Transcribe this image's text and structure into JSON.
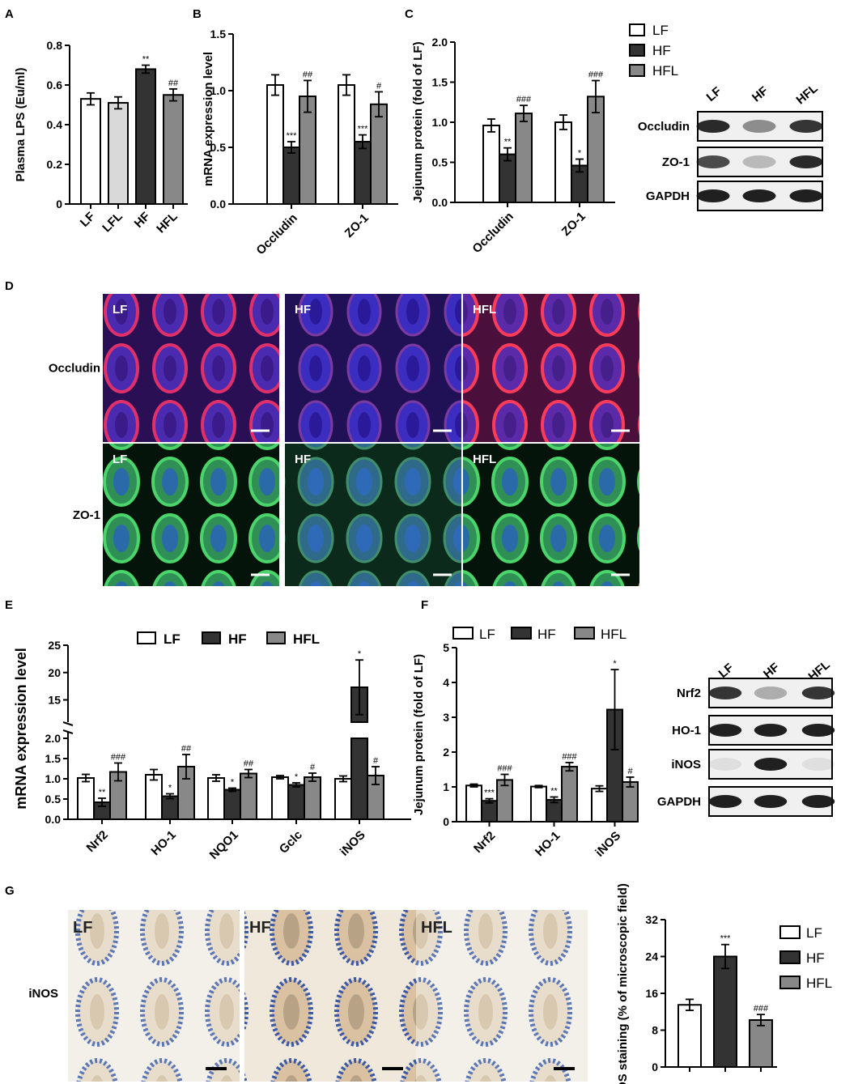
{
  "colors": {
    "LF": "#ffffff",
    "LFL": "#d9d9d9",
    "HF": "#333333",
    "HFL": "#888888"
  },
  "panels": {
    "A": "A",
    "B": "B",
    "C": "C",
    "D": "D",
    "E": "E",
    "F": "F",
    "G": "G"
  },
  "legend": {
    "LF": "LF",
    "HF": "HF",
    "HFL": "HFL"
  },
  "western_C": {
    "lanes": [
      "LF",
      "HF",
      "HFL"
    ],
    "rows": [
      "Occludin",
      "ZO-1",
      "GAPDH"
    ]
  },
  "western_F": {
    "lanes": [
      "LF",
      "HF",
      "HFL"
    ],
    "rows": [
      "Nrf2",
      "HO-1",
      "iNOS",
      "GAPDH"
    ]
  },
  "panel_D": {
    "rows": [
      "Occludin",
      "ZO-1"
    ],
    "cols": [
      "LF",
      "HF",
      "HFL"
    ]
  },
  "panel_G": {
    "row": "iNOS",
    "cols": [
      "LF",
      "HF",
      "HFL"
    ]
  },
  "chart_data": [
    {
      "panel": "A",
      "type": "bar",
      "ylabel": "Plasma LPS (Eu/ml)",
      "ylim": [
        0,
        0.8
      ],
      "yticks": [
        "0",
        "0.2",
        "0.4",
        "0.6",
        "0.8"
      ],
      "categories": [
        "LF",
        "LFL",
        "HF",
        "HFL"
      ],
      "values": [
        0.53,
        0.51,
        0.68,
        0.55
      ],
      "errors": [
        0.03,
        0.03,
        0.02,
        0.03
      ],
      "sig": [
        "",
        "",
        "**",
        "##"
      ]
    },
    {
      "panel": "B",
      "type": "bar",
      "ylabel": "mRNA expression level",
      "ylim": [
        0,
        1.5
      ],
      "yticks": [
        "0.0",
        "0.5",
        "1.0",
        "1.5"
      ],
      "categories": [
        "Occludin",
        "ZO-1"
      ],
      "series": [
        {
          "name": "LF",
          "values": [
            1.05,
            1.05
          ],
          "errors": [
            0.09,
            0.09
          ],
          "sig": [
            "",
            ""
          ]
        },
        {
          "name": "HF",
          "values": [
            0.5,
            0.55
          ],
          "errors": [
            0.05,
            0.06
          ],
          "sig": [
            "***",
            "***"
          ]
        },
        {
          "name": "HFL",
          "values": [
            0.95,
            0.88
          ],
          "errors": [
            0.14,
            0.11
          ],
          "sig": [
            "##",
            "#"
          ]
        }
      ]
    },
    {
      "panel": "C",
      "type": "bar",
      "ylabel": "Jejunum protein (fold of LF)",
      "ylim": [
        0,
        2.0
      ],
      "yticks": [
        "0.0",
        "0.5",
        "1.0",
        "1.5",
        "2.0"
      ],
      "categories": [
        "Occludin",
        "ZO-1"
      ],
      "series": [
        {
          "name": "LF",
          "values": [
            0.96,
            1.0
          ],
          "errors": [
            0.08,
            0.09
          ],
          "sig": [
            "",
            ""
          ]
        },
        {
          "name": "HF",
          "values": [
            0.6,
            0.46
          ],
          "errors": [
            0.08,
            0.08
          ],
          "sig": [
            "**",
            "*"
          ]
        },
        {
          "name": "HFL",
          "values": [
            1.11,
            1.32
          ],
          "errors": [
            0.1,
            0.2
          ],
          "sig": [
            "###",
            "###"
          ]
        }
      ]
    },
    {
      "panel": "E",
      "type": "bar",
      "ylabel": "mRNA expression level",
      "yticks_low": [
        "0.0",
        "0.5",
        "1.0",
        "1.5",
        "2.0"
      ],
      "yticks_high": [
        "15",
        "20",
        "25"
      ],
      "categories": [
        "Nrf2",
        "HO-1",
        "NQO1",
        "Gclc",
        "iNOS"
      ],
      "series": [
        {
          "name": "LF",
          "values": [
            1.02,
            1.1,
            1.02,
            1.04,
            1.0
          ],
          "errors": [
            0.09,
            0.13,
            0.08,
            0.04,
            0.07
          ],
          "sig": [
            "",
            "",
            "",
            "",
            ""
          ]
        },
        {
          "name": "HF",
          "values": [
            0.42,
            0.57,
            0.73,
            0.85,
            17.3
          ],
          "errors": [
            0.1,
            0.06,
            0.04,
            0.05,
            5.0
          ],
          "sig": [
            "**",
            "*",
            "*",
            "*",
            "*"
          ]
        },
        {
          "name": "HFL",
          "values": [
            1.17,
            1.3,
            1.13,
            1.04,
            1.08
          ],
          "errors": [
            0.22,
            0.3,
            0.1,
            0.1,
            0.22
          ],
          "sig": [
            "###",
            "##",
            "##",
            "#",
            "#"
          ]
        }
      ]
    },
    {
      "panel": "F",
      "type": "bar",
      "ylabel": "Jejunum protein (fold of LF)",
      "ylim": [
        0,
        5
      ],
      "yticks": [
        "0",
        "1",
        "2",
        "3",
        "4",
        "5"
      ],
      "categories": [
        "Nrf2",
        "HO-1",
        "iNOS"
      ],
      "series": [
        {
          "name": "LF",
          "values": [
            1.04,
            1.01,
            0.95
          ],
          "errors": [
            0.04,
            0.03,
            0.08
          ],
          "sig": [
            "",
            "",
            ""
          ]
        },
        {
          "name": "HF",
          "values": [
            0.6,
            0.63,
            3.22
          ],
          "errors": [
            0.06,
            0.08,
            1.15
          ],
          "sig": [
            "***",
            "**",
            "*"
          ]
        },
        {
          "name": "HFL",
          "values": [
            1.2,
            1.58,
            1.14
          ],
          "errors": [
            0.16,
            0.12,
            0.14
          ],
          "sig": [
            "###",
            "###",
            "#"
          ]
        }
      ]
    },
    {
      "panel": "G",
      "type": "bar",
      "ylabel": "iNOS staining (% of microscopic field)",
      "ylim": [
        0,
        32
      ],
      "yticks": [
        "0",
        "8",
        "16",
        "24",
        "32"
      ],
      "categories": [
        "LF",
        "HF",
        "HFL"
      ],
      "values": [
        13.5,
        24.0,
        10.2
      ],
      "errors": [
        1.2,
        2.6,
        1.2
      ],
      "sig": [
        "",
        "***",
        "###"
      ]
    }
  ]
}
